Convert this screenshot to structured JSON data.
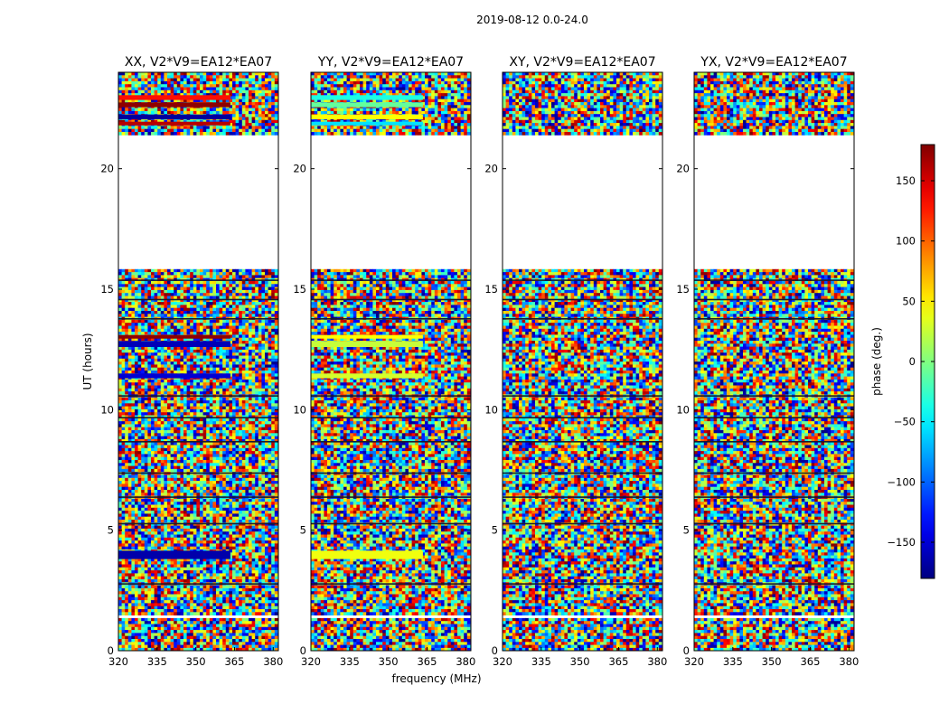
{
  "suptitle": "2019-08-12 0.0-24.0",
  "xlabel": "frequency (MHz)",
  "ylabel": "UT (hours)",
  "colorbar_label": "phase (deg.)",
  "chart_data": {
    "type": "heatmap",
    "colormap": "jet",
    "xlim": [
      320,
      382
    ],
    "ylim": [
      0,
      24
    ],
    "clim": [
      -180,
      180
    ],
    "x_ticks": [
      "320",
      "335",
      "350",
      "365",
      "380"
    ],
    "y_ticks": [
      "0",
      "5",
      "10",
      "15",
      "20"
    ],
    "colorbar_ticks": [
      "−150",
      "−100",
      "−50",
      "0",
      "50",
      "100",
      "150"
    ],
    "colorbar_tick_values": [
      -150,
      -100,
      -50,
      0,
      50,
      100,
      150
    ],
    "no_data_hours": [
      [
        21.45,
        15.8
      ],
      [
        1.48,
        1.38
      ]
    ],
    "panels": [
      {
        "title": "XX, V2*V9=EA12*EA07",
        "coherent_bands": [
          {
            "from_hour": 23.05,
            "to_hour": 22.85,
            "phase_deg": 130
          },
          {
            "from_hour": 22.75,
            "to_hour": 22.55,
            "phase_deg": 175
          },
          {
            "from_hour": 22.25,
            "to_hour": 22.05,
            "phase_deg": -170
          },
          {
            "from_hour": 21.95,
            "to_hour": 21.8,
            "phase_deg": 160
          },
          {
            "from_hour": 13.1,
            "to_hour": 12.95,
            "phase_deg": 175
          },
          {
            "from_hour": 12.85,
            "to_hour": 12.6,
            "phase_deg": -160
          },
          {
            "from_hour": 11.5,
            "to_hour": 11.3,
            "phase_deg": -150
          },
          {
            "from_hour": 4.15,
            "to_hour": 3.8,
            "phase_deg": -165
          }
        ]
      },
      {
        "title": "YY, V2*V9=EA12*EA07",
        "coherent_bands": [
          {
            "from_hour": 23.05,
            "to_hour": 22.85,
            "phase_deg": -35
          },
          {
            "from_hour": 22.75,
            "to_hour": 22.55,
            "phase_deg": -10
          },
          {
            "from_hour": 22.25,
            "to_hour": 22.05,
            "phase_deg": 45
          },
          {
            "from_hour": 21.95,
            "to_hour": 21.8,
            "phase_deg": -55
          },
          {
            "from_hour": 13.1,
            "to_hour": 12.95,
            "phase_deg": 45
          },
          {
            "from_hour": 12.85,
            "to_hour": 12.6,
            "phase_deg": 25
          },
          {
            "from_hour": 11.5,
            "to_hour": 11.3,
            "phase_deg": 30
          },
          {
            "from_hour": 4.15,
            "to_hour": 3.8,
            "phase_deg": 40
          }
        ]
      },
      {
        "title": "XY, V2*V9=EA12*EA07",
        "coherent_bands": []
      },
      {
        "title": "YX, V2*V9=EA12*EA07",
        "coherent_bands": []
      }
    ]
  }
}
